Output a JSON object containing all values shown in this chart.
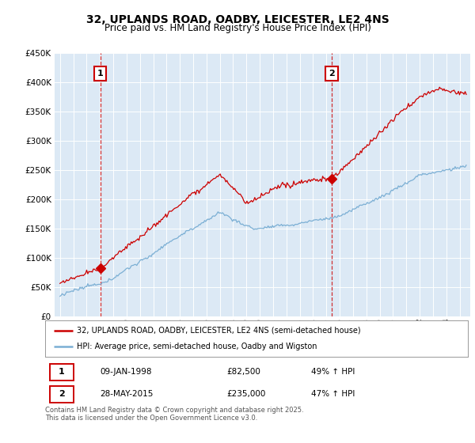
{
  "title": "32, UPLANDS ROAD, OADBY, LEICESTER, LE2 4NS",
  "subtitle": "Price paid vs. HM Land Registry's House Price Index (HPI)",
  "ylim": [
    0,
    450000
  ],
  "yticks": [
    0,
    50000,
    100000,
    150000,
    200000,
    250000,
    300000,
    350000,
    400000,
    450000
  ],
  "sale1_year": 1998.03,
  "sale1_price": 82500,
  "sale1_label": "1",
  "sale1_date": "09-JAN-1998",
  "sale1_hpi": "49% ↑ HPI",
  "sale2_year": 2015.4,
  "sale2_price": 235000,
  "sale2_label": "2",
  "sale2_date": "28-MAY-2015",
  "sale2_hpi": "47% ↑ HPI",
  "legend1": "32, UPLANDS ROAD, OADBY, LEICESTER, LE2 4NS (semi-detached house)",
  "legend2": "HPI: Average price, semi-detached house, Oadby and Wigston",
  "footer": "Contains HM Land Registry data © Crown copyright and database right 2025.\nThis data is licensed under the Open Government Licence v3.0.",
  "property_color": "#cc0000",
  "hpi_color": "#7bafd4",
  "vline_color": "#cc0000",
  "plot_bg_color": "#dce9f5",
  "fig_bg_color": "#ffffff",
  "grid_color": "#ffffff",
  "title_fontsize": 10,
  "subtitle_fontsize": 8.5,
  "xlim_left": 1994.6,
  "xlim_right": 2025.8
}
